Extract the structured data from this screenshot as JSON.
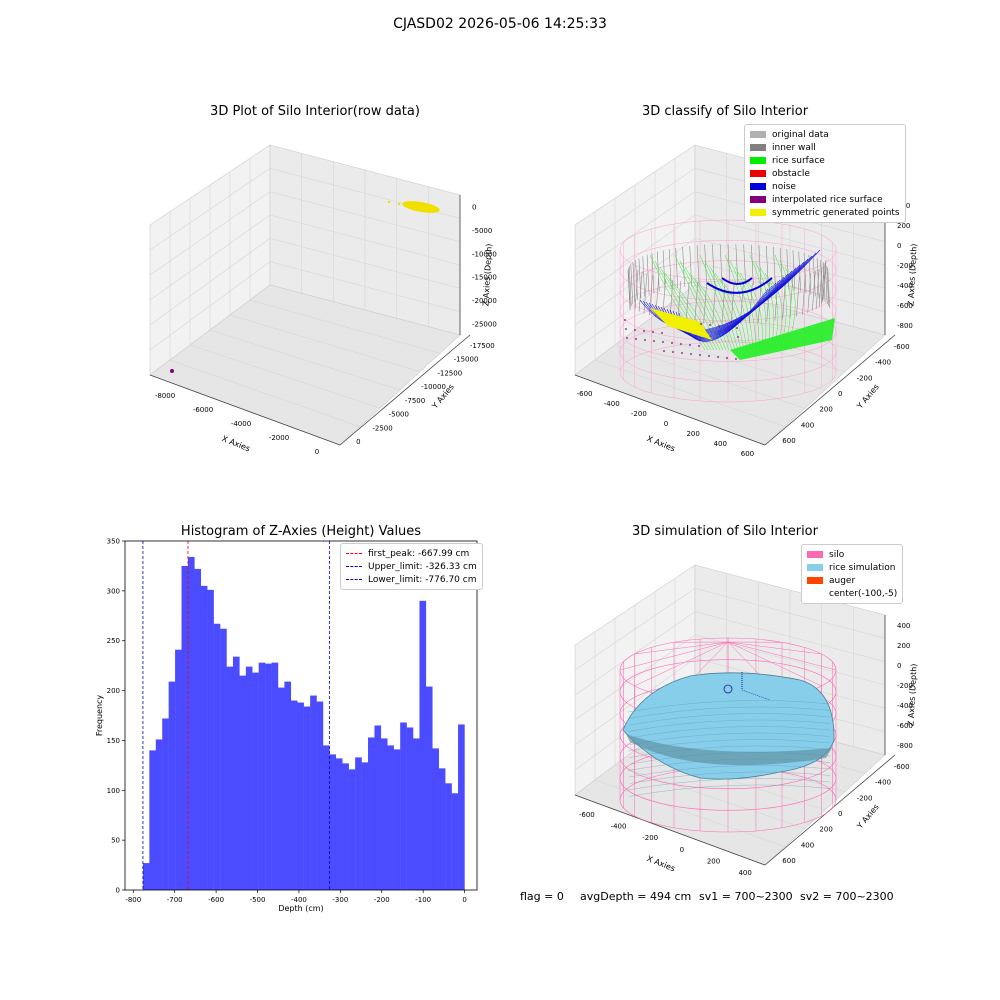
{
  "suptitle": "CJASD02 2026-05-06 14:25:33",
  "panels": {
    "raw": {
      "title": "3D Plot of Silo Interior(row data)",
      "xlabel": "X Axies",
      "ylabel": "Y Axies",
      "zlabel": "Z Axies (Depth)",
      "xticks": [
        "-8000",
        "-6000",
        "-4000",
        "-2000",
        "0"
      ],
      "yticks": [
        "-17500",
        "-15000",
        "-12500",
        "-10000",
        "-7500",
        "-5000",
        "-2500",
        "0"
      ],
      "zticks": [
        "-25000",
        "-20000",
        "-15000",
        "-10000",
        "-5000",
        "0"
      ]
    },
    "classify": {
      "title": "3D classify of Silo Interior",
      "xlabel": "X Axies",
      "ylabel": "Y Axies",
      "zlabel": "Z Axies (Depth)",
      "xticks": [
        "-600",
        "-400",
        "-200",
        "0",
        "200",
        "400",
        "600"
      ],
      "yticks": [
        "-600",
        "-400",
        "-200",
        "0",
        "200",
        "400",
        "600"
      ],
      "zticks": [
        "-800",
        "-600",
        "-400",
        "-200",
        "0",
        "200",
        "400"
      ],
      "legend": [
        {
          "label": "original data",
          "color": "#b0b0b0"
        },
        {
          "label": "inner wall",
          "color": "#808080"
        },
        {
          "label": "rice surface",
          "color": "#00ee00"
        },
        {
          "label": "obstacle",
          "color": "#ee0000"
        },
        {
          "label": "noise",
          "color": "#0000dd"
        },
        {
          "label": "interpolated rice surface",
          "color": "#800080"
        },
        {
          "label": "symmetric generated points",
          "color": "#f0f000"
        }
      ]
    },
    "simulation": {
      "title": "3D simulation of Silo Interior",
      "xlabel": "X Axies",
      "ylabel": "Y Axies",
      "zlabel": "Z Axies (Depth)",
      "xticks": [
        "-600",
        "-400",
        "-200",
        "0",
        "200",
        "400"
      ],
      "yticks": [
        "-600",
        "-400",
        "-200",
        "0",
        "200",
        "400",
        "600"
      ],
      "zticks": [
        "-800",
        "-600",
        "-400",
        "-200",
        "0",
        "200",
        "400"
      ],
      "legend": [
        {
          "label": "silo",
          "color": "#ff69b4"
        },
        {
          "label": "rice simulation",
          "color": "#87ceeb"
        },
        {
          "label": "auger",
          "color": "#ff4500"
        },
        {
          "label": "center(-100,-5)",
          "color": ""
        }
      ]
    }
  },
  "footer": {
    "flag": "flag = 0",
    "avg_depth": "avgDepth = 494 cm",
    "sv1": "sv1 = 700~2300",
    "sv2": "sv2 = 700~2300"
  },
  "chart_data": {
    "type": "bar",
    "title": "Histogram of Z-Axies (Height) Values",
    "xlabel": "Depth (cm)",
    "ylabel": "Frequency",
    "xlim": [
      -820,
      30
    ],
    "ylim": [
      0,
      350
    ],
    "xticks": [
      -800,
      -700,
      -600,
      -500,
      -400,
      -300,
      -200,
      -100,
      0
    ],
    "yticks": [
      0,
      50,
      100,
      150,
      200,
      250,
      300,
      350
    ],
    "color": "#4b4bff",
    "bin_start": -776.7,
    "bin_width": 15.53,
    "values": [
      27,
      140,
      151,
      172,
      209,
      241,
      325,
      334,
      322,
      305,
      301,
      267,
      262,
      224,
      234,
      215,
      224,
      218,
      228,
      227,
      228,
      203,
      209,
      190,
      188,
      184,
      195,
      189,
      145,
      136,
      132,
      127,
      121,
      133,
      128,
      153,
      165,
      152,
      145,
      141,
      168,
      163,
      152,
      290,
      204,
      142,
      122,
      107,
      97,
      166
    ],
    "vlines": [
      {
        "x": -667.99,
        "label": "first_peak: -667.99 cm",
        "color": "#ff0000"
      },
      {
        "x": -326.33,
        "label": "Upper_limit: -326.33 cm",
        "color": "#0000cc"
      },
      {
        "x": -776.7,
        "label": "Lower_limit: -776.70 cm",
        "color": "#0000cc"
      }
    ],
    "legend_position": "upper right"
  }
}
